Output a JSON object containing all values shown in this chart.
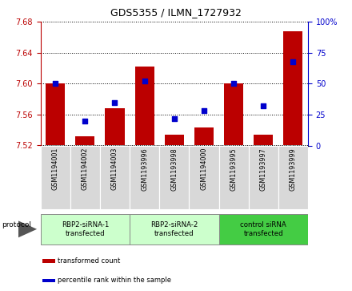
{
  "title": "GDS5355 / ILMN_1727932",
  "samples": [
    "GSM1194001",
    "GSM1194002",
    "GSM1194003",
    "GSM1193996",
    "GSM1193998",
    "GSM1194000",
    "GSM1193995",
    "GSM1193997",
    "GSM1193999"
  ],
  "bar_values": [
    7.6,
    7.532,
    7.568,
    7.622,
    7.534,
    7.543,
    7.6,
    7.534,
    7.668
  ],
  "percentile_values": [
    50,
    20,
    35,
    52,
    22,
    28,
    50,
    32,
    68
  ],
  "ylim_left": [
    7.52,
    7.68
  ],
  "ylim_right": [
    0,
    100
  ],
  "yticks_left": [
    7.52,
    7.56,
    7.6,
    7.64,
    7.68
  ],
  "yticks_right": [
    0,
    25,
    50,
    75,
    100
  ],
  "bar_color": "#bb0000",
  "dot_color": "#0000cc",
  "protocol_groups": [
    {
      "label": "RBP2-siRNA-1\ntransfected",
      "indices": [
        0,
        1,
        2
      ],
      "color": "#ccffcc"
    },
    {
      "label": "RBP2-siRNA-2\ntransfected",
      "indices": [
        3,
        4,
        5
      ],
      "color": "#ccffcc"
    },
    {
      "label": "control siRNA\ntransfected",
      "indices": [
        6,
        7,
        8
      ],
      "color": "#44cc44"
    }
  ],
  "protocol_label": "protocol",
  "legend_items": [
    {
      "color": "#bb0000",
      "label": "transformed count"
    },
    {
      "color": "#0000cc",
      "label": "percentile rank within the sample"
    }
  ],
  "bar_width": 0.65,
  "base_value": 7.52
}
